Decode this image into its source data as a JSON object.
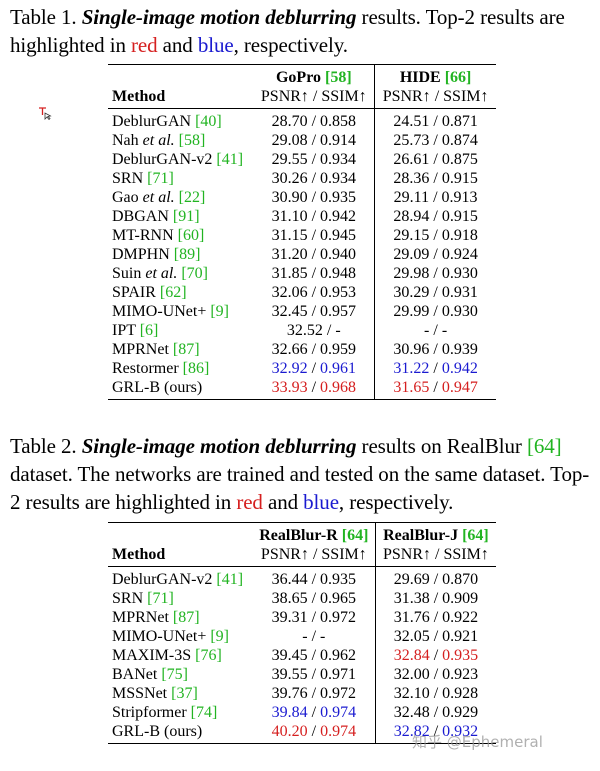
{
  "table1": {
    "caption": {
      "prefix": "Table 1. ",
      "emph": "Single-image motion deblurring",
      "mid": " results.  Top-2 results are highlighted in ",
      "red_word": "red",
      "and": " and ",
      "blue_word": "blue",
      "suffix": ", respectively."
    },
    "header": {
      "method": "Method",
      "col1_name": "GoPro",
      "col1_ref": "[58]",
      "col2_name": "HIDE",
      "col2_ref": "[66]",
      "metric": "PSNR↑ / SSIM↑"
    },
    "rows": [
      {
        "name": "DeblurGAN",
        "ref": "[40]",
        "c1": [
          "28.70 / 0.858"
        ],
        "c2": [
          "24.51 / 0.871"
        ]
      },
      {
        "name": "Nah et al.",
        "ref": "[58]",
        "c1": [
          "29.08 / 0.914"
        ],
        "c2": [
          "25.73 / 0.874"
        ]
      },
      {
        "name": "DeblurGAN-v2",
        "ref": "[41]",
        "c1": [
          "29.55 / 0.934"
        ],
        "c2": [
          "26.61 / 0.875"
        ]
      },
      {
        "name": "SRN",
        "ref": "[71]",
        "c1": [
          "30.26 / 0.934"
        ],
        "c2": [
          "28.36 / 0.915"
        ]
      },
      {
        "name": "Gao et al.",
        "ref": "[22]",
        "c1": [
          "30.90 / 0.935"
        ],
        "c2": [
          "29.11 / 0.913"
        ]
      },
      {
        "name": "DBGAN",
        "ref": "[91]",
        "c1": [
          "31.10 / 0.942"
        ],
        "c2": [
          "28.94 / 0.915"
        ]
      },
      {
        "name": "MT-RNN",
        "ref": "[60]",
        "c1": [
          "31.15 / 0.945"
        ],
        "c2": [
          "29.15 / 0.918"
        ]
      },
      {
        "name": "DMPHN",
        "ref": "[89]",
        "c1": [
          "31.20 / 0.940"
        ],
        "c2": [
          "29.09 / 0.924"
        ]
      },
      {
        "name": "Suin et al.",
        "ref": "[70]",
        "c1": [
          "31.85 / 0.948"
        ],
        "c2": [
          "29.98 / 0.930"
        ]
      },
      {
        "name": "SPAIR",
        "ref": "[62]",
        "c1": [
          "32.06 / 0.953"
        ],
        "c2": [
          "30.29 / 0.931"
        ]
      },
      {
        "name": "MIMO-UNet+",
        "ref": "[9]",
        "c1": [
          "32.45 / 0.957"
        ],
        "c2": [
          "29.99 / 0.930"
        ]
      },
      {
        "name": "IPT",
        "ref": "[6]",
        "c1": [
          "32.52 / -"
        ],
        "c2": [
          "- / -"
        ]
      },
      {
        "name": "MPRNet",
        "ref": "[87]",
        "c1": [
          "32.66 / 0.959"
        ],
        "c2": [
          "30.96 / 0.939"
        ]
      },
      {
        "name": "Restormer",
        "ref": "[86]",
        "c1": [
          "32.92",
          " / ",
          "0.961"
        ],
        "c2": [
          "31.22",
          " / ",
          "0.942"
        ],
        "color1": [
          "blue",
          "",
          "blue"
        ],
        "color2": [
          "blue",
          "",
          "blue"
        ]
      },
      {
        "name": "GRL-B (ours)",
        "ref": "",
        "c1": [
          "33.93",
          " / ",
          "0.968"
        ],
        "c2": [
          "31.65",
          " / ",
          "0.947"
        ],
        "color1": [
          "red",
          "",
          "red"
        ],
        "color2": [
          "red",
          "",
          "red"
        ]
      }
    ]
  },
  "table2": {
    "caption": {
      "prefix": "Table 2. ",
      "emph": "Single-image motion deblurring",
      "mid": " results on RealBlur ",
      "ref": "[64]",
      "mid2": " dataset.  The networks are trained and tested on the same dataset. Top-2 results are highlighted in ",
      "red_word": "red",
      "and": " and ",
      "blue_word": "blue",
      "suffix": ", respectively."
    },
    "header": {
      "method": "Method",
      "col1_name": "RealBlur-R",
      "col1_ref": "[64]",
      "col2_name": "RealBlur-J",
      "col2_ref": "[64]",
      "metric": "PSNR↑ / SSIM↑"
    },
    "rows": [
      {
        "name": "DeblurGAN-v2",
        "ref": "[41]",
        "c1": [
          "36.44 / 0.935"
        ],
        "c2": [
          "29.69 / 0.870"
        ]
      },
      {
        "name": "SRN",
        "ref": "[71]",
        "c1": [
          "38.65 / 0.965"
        ],
        "c2": [
          "31.38 / 0.909"
        ]
      },
      {
        "name": "MPRNet",
        "ref": "[87]",
        "c1": [
          "39.31 / 0.972"
        ],
        "c2": [
          "31.76 / 0.922"
        ]
      },
      {
        "name": "MIMO-UNet+",
        "ref": "[9]",
        "c1": [
          "- / -"
        ],
        "c2": [
          "32.05 / 0.921"
        ]
      },
      {
        "name": "MAXIM-3S",
        "ref": "[76]",
        "c1": [
          "39.45 / 0.962"
        ],
        "c2": [
          "32.84",
          " / ",
          "0.935"
        ],
        "color2": [
          "red",
          "",
          "red"
        ]
      },
      {
        "name": "BANet",
        "ref": "[75]",
        "c1": [
          "39.55 / 0.971"
        ],
        "c2": [
          "32.00 / 0.923"
        ]
      },
      {
        "name": "MSSNet",
        "ref": "[37]",
        "c1": [
          "39.76 / 0.972"
        ],
        "c2": [
          "32.10 / 0.928"
        ]
      },
      {
        "name": "Stripformer",
        "ref": "[74]",
        "c1": [
          "39.84",
          " / ",
          "0.974"
        ],
        "c2": [
          "32.48 / 0.929"
        ],
        "color1": [
          "blue",
          "",
          "blue"
        ]
      },
      {
        "name": "GRL-B (ours)",
        "ref": "",
        "c1": [
          "40.20",
          " / ",
          "0.974"
        ],
        "c2": [
          "32.82",
          " / ",
          "0.932"
        ],
        "color1": [
          "red",
          "",
          "red"
        ],
        "color2": [
          "blue",
          "",
          "blue"
        ]
      }
    ]
  },
  "watermark": "知乎 @Ephemeral"
}
